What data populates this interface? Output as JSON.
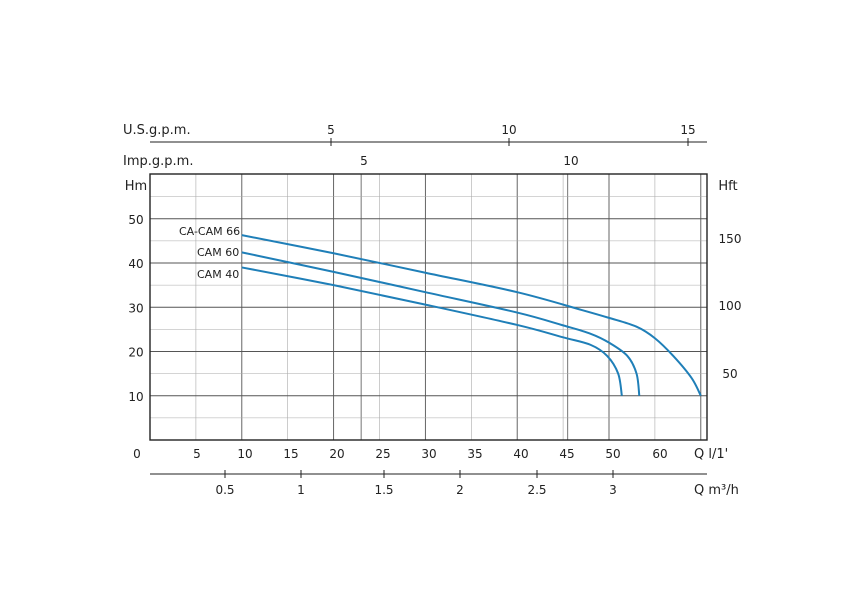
{
  "chart_data": {
    "type": "line",
    "y_label_left": "Hm",
    "y_label_right": "Hft",
    "x_ticks_lpm": [
      "0",
      "5",
      "10",
      "15",
      "20",
      "25",
      "30",
      "35",
      "40",
      "45",
      "50",
      "60"
    ],
    "x_unit_lpm": "Q  l/1'",
    "x_ticks_m3h": [
      "0.5",
      "1",
      "1.5",
      "2",
      "2.5",
      "3"
    ],
    "x_unit_m3h": "Q  m³/h",
    "x_ticks_usgpm": [
      "5",
      "10",
      "15"
    ],
    "x_unit_usgpm": "U.S.g.p.m.",
    "x_ticks_impgpm": [
      "5",
      "10"
    ],
    "x_unit_impgpm": "Imp.g.p.m.",
    "y_ticks_m": [
      "10",
      "20",
      "30",
      "40",
      "50"
    ],
    "y_ticks_ft": [
      "50",
      "100",
      "150"
    ],
    "xlim": [
      0,
      60
    ],
    "ylim": [
      0,
      58
    ],
    "grid": true,
    "line_color": "#1f7fb8",
    "series": [
      {
        "name": "CA-CAM 66",
        "points": [
          [
            10,
            46.3
          ],
          [
            20,
            42.2
          ],
          [
            30,
            37.8
          ],
          [
            40,
            33.4
          ],
          [
            47,
            29.4
          ],
          [
            50,
            27.6
          ],
          [
            53,
            25.6
          ],
          [
            55,
            23.0
          ],
          [
            57,
            19.0
          ],
          [
            59,
            14.0
          ],
          [
            60,
            10.0
          ]
        ]
      },
      {
        "name": "CAM 60",
        "points": [
          [
            10,
            42.4
          ],
          [
            20,
            38.0
          ],
          [
            30,
            33.4
          ],
          [
            40,
            28.8
          ],
          [
            45,
            25.9
          ],
          [
            48,
            24.0
          ],
          [
            50,
            22.0
          ],
          [
            52,
            19.0
          ],
          [
            53,
            15.0
          ],
          [
            53.3,
            10.0
          ]
        ]
      },
      {
        "name": "CAM 40",
        "points": [
          [
            10,
            39.0
          ],
          [
            20,
            35.0
          ],
          [
            30,
            30.6
          ],
          [
            40,
            26.0
          ],
          [
            45,
            23.2
          ],
          [
            48,
            21.5
          ],
          [
            49.8,
            19.0
          ],
          [
            51,
            15.0
          ],
          [
            51.4,
            10.0
          ]
        ]
      }
    ]
  }
}
